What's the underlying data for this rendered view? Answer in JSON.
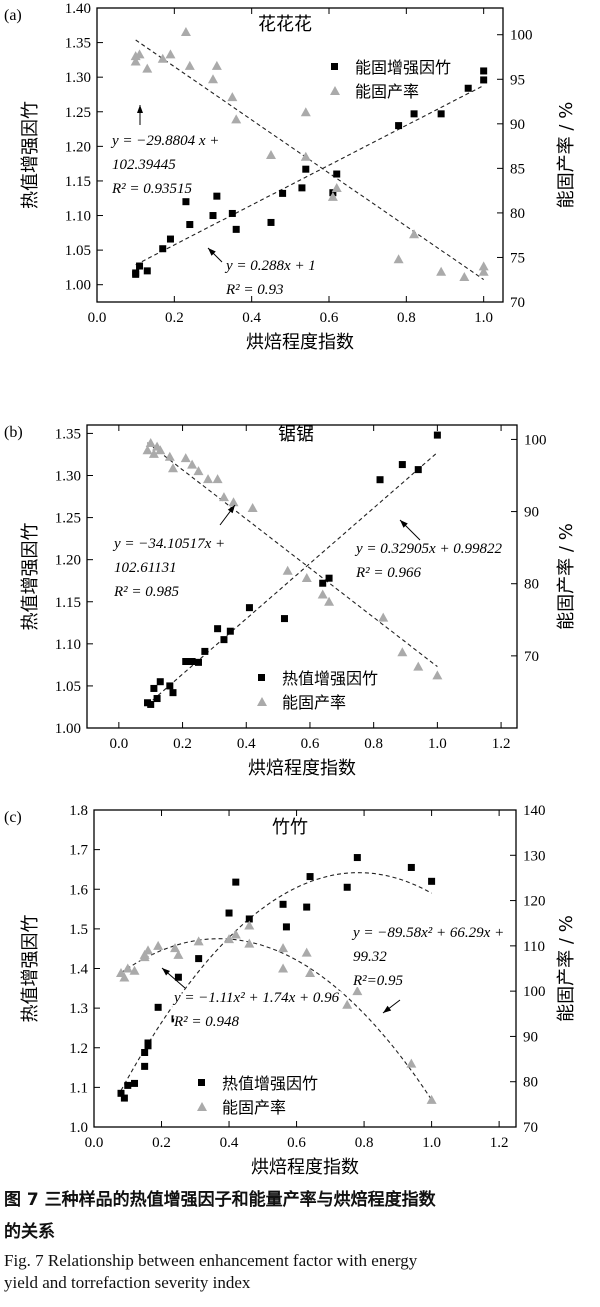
{
  "chart_data": [
    {
      "type": "scatter",
      "panel_label": "(a)",
      "title": "花花花",
      "xlabel": "烘焙程度指数",
      "ylabel_left": "热值增强因竹",
      "ylabel_right": "能固产率 / %",
      "xlim": [
        0.0,
        1.05
      ],
      "ylim_left": [
        0.975,
        1.4
      ],
      "ylim_right": [
        70,
        103
      ],
      "xticks": [
        "0.0",
        "0.2",
        "0.4",
        "0.6",
        "0.8",
        "1.0"
      ],
      "yticks_left": [
        "1.00",
        "1.05",
        "1.10",
        "1.15",
        "1.20",
        "1.25",
        "1.30",
        "1.35",
        "1.40"
      ],
      "yticks_right": [
        "70",
        "75",
        "80",
        "85",
        "90",
        "95",
        "100"
      ],
      "legend_position": "top-right",
      "series": [
        {
          "name": "能固增强因竹",
          "axis": "left",
          "marker": "square",
          "x": [
            0.1,
            0.1,
            0.11,
            0.13,
            0.17,
            0.19,
            0.23,
            0.24,
            0.3,
            0.31,
            0.35,
            0.36,
            0.45,
            0.48,
            0.53,
            0.54,
            0.61,
            0.62,
            0.78,
            0.82,
            0.89,
            0.96,
            1.0,
            1.0
          ],
          "y": [
            1.017,
            1.015,
            1.027,
            1.02,
            1.052,
            1.066,
            1.12,
            1.087,
            1.1,
            1.128,
            1.103,
            1.08,
            1.09,
            1.132,
            1.14,
            1.167,
            1.133,
            1.16,
            1.23,
            1.247,
            1.247,
            1.284,
            1.296,
            1.309
          ]
        },
        {
          "name": "能固产率",
          "axis": "right",
          "marker": "triangle",
          "x": [
            0.1,
            0.1,
            0.11,
            0.13,
            0.17,
            0.19,
            0.23,
            0.24,
            0.3,
            0.31,
            0.35,
            0.36,
            0.45,
            0.54,
            0.54,
            0.61,
            0.62,
            0.78,
            0.82,
            0.89,
            0.95,
            1.0,
            1.0
          ],
          "y": [
            97.6,
            97.0,
            97.8,
            96.2,
            97.3,
            97.8,
            100.3,
            96.5,
            95.0,
            96.5,
            93.0,
            90.5,
            86.5,
            91.3,
            86.3,
            81.8,
            82.8,
            74.8,
            77.6,
            73.4,
            72.8,
            73.4,
            74.0
          ]
        }
      ],
      "fits": [
        {
          "series": "能固增强因竹",
          "label_line1": "y = 0.288x + 1",
          "label_line2": "R² = 0.93",
          "slope": 0.288,
          "intercept": 1.0,
          "x_range": [
            0.1,
            1.0
          ]
        },
        {
          "series": "能固产率",
          "label_line1": "y = −29.8804 x +",
          "label_line2": "102.39445",
          "label_line3": "R² = 0.93515",
          "slope": -29.8804,
          "intercept": 102.39445,
          "x_range": [
            0.1,
            1.0
          ]
        }
      ]
    },
    {
      "type": "scatter",
      "panel_label": "(b)",
      "title": "锯锯",
      "xlabel": "烘焙程度指数",
      "ylabel_left": "热值增强因竹",
      "ylabel_right": "能固产率 / %",
      "xlim": [
        -0.1,
        1.25
      ],
      "ylim_left": [
        1.0,
        1.36
      ],
      "ylim_right": [
        60,
        102
      ],
      "xticks": [
        "0.0",
        "0.2",
        "0.4",
        "0.6",
        "0.8",
        "1.0",
        "1.2"
      ],
      "yticks_left": [
        "1.00",
        "1.05",
        "1.10",
        "1.15",
        "1.20",
        "1.25",
        "1.30",
        "1.35"
      ],
      "yticks_right": [
        "70",
        "80",
        "90",
        "100"
      ],
      "legend_position": "bottom-center",
      "series": [
        {
          "name": "热值增强因竹",
          "axis": "left",
          "marker": "square",
          "x": [
            0.09,
            0.1,
            0.11,
            0.12,
            0.13,
            0.16,
            0.17,
            0.21,
            0.23,
            0.25,
            0.27,
            0.31,
            0.33,
            0.35,
            0.41,
            0.52,
            0.64,
            0.66,
            0.82,
            0.89,
            0.94,
            1.0
          ],
          "y": [
            1.03,
            1.028,
            1.047,
            1.035,
            1.055,
            1.05,
            1.042,
            1.079,
            1.079,
            1.078,
            1.091,
            1.118,
            1.105,
            1.115,
            1.143,
            1.13,
            1.172,
            1.178,
            1.295,
            1.313,
            1.307,
            1.348
          ]
        },
        {
          "name": "能固产率",
          "axis": "right",
          "marker": "triangle",
          "x": [
            0.09,
            0.1,
            0.11,
            0.12,
            0.13,
            0.16,
            0.17,
            0.21,
            0.23,
            0.25,
            0.28,
            0.31,
            0.33,
            0.36,
            0.42,
            0.53,
            0.59,
            0.64,
            0.66,
            0.83,
            0.89,
            0.94,
            1.0
          ],
          "y": [
            98.5,
            99.5,
            98.0,
            99.0,
            98.5,
            97.6,
            96.0,
            97.4,
            96.5,
            95.6,
            94.5,
            94.5,
            92.0,
            91.3,
            90.5,
            81.8,
            80.8,
            78.5,
            77.5,
            75.3,
            70.5,
            68.5,
            67.3
          ]
        }
      ],
      "fits": [
        {
          "series": "热值增强因竹",
          "label_line1": "y = 0.32905x + 0.99822",
          "label_line2": "R² = 0.966",
          "slope": 0.32905,
          "intercept": 0.99822,
          "x_range": [
            0.09,
            1.0
          ]
        },
        {
          "series": "能固产率",
          "label_line1": "y = −34.10517x +",
          "label_line2": "102.61131",
          "label_line3": "R² = 0.985",
          "slope": -34.10517,
          "intercept": 102.61131,
          "x_range": [
            0.09,
            1.0
          ]
        }
      ]
    },
    {
      "type": "scatter",
      "panel_label": "(c)",
      "title": "竹竹",
      "xlabel": "烘焙程度指数",
      "ylabel_left": "热值增强因竹",
      "ylabel_right": "能固产率 / %",
      "xlim": [
        0.0,
        1.25
      ],
      "ylim_left": [
        1.0,
        1.8
      ],
      "ylim_right": [
        70,
        140
      ],
      "xticks": [
        "0.0",
        "0.2",
        "0.4",
        "0.6",
        "0.8",
        "1.0",
        "1.2"
      ],
      "yticks_left": [
        "1.0",
        "1.1",
        "1.2",
        "1.3",
        "1.4",
        "1.5",
        "1.6",
        "1.7",
        "1.8"
      ],
      "yticks_right": [
        "70",
        "80",
        "90",
        "100",
        "110",
        "120",
        "130",
        "140"
      ],
      "legend_position": "bottom-center",
      "series": [
        {
          "name": "热值增强因竹",
          "axis": "left",
          "marker": "square",
          "x": [
            0.08,
            0.09,
            0.1,
            0.12,
            0.15,
            0.15,
            0.16,
            0.16,
            0.19,
            0.24,
            0.25,
            0.31,
            0.4,
            0.42,
            0.46,
            0.56,
            0.57,
            0.63,
            0.64,
            0.75,
            0.78,
            0.94,
            1.0
          ],
          "y": [
            1.085,
            1.073,
            1.105,
            1.11,
            1.153,
            1.188,
            1.205,
            1.212,
            1.302,
            1.273,
            1.378,
            1.425,
            1.54,
            1.618,
            1.525,
            1.562,
            1.505,
            1.555,
            1.632,
            1.605,
            1.68,
            1.655,
            1.62
          ]
        },
        {
          "name": "能固产率",
          "axis": "right",
          "marker": "triangle",
          "x": [
            0.08,
            0.09,
            0.1,
            0.12,
            0.15,
            0.15,
            0.16,
            0.19,
            0.24,
            0.25,
            0.31,
            0.4,
            0.42,
            0.46,
            0.46,
            0.56,
            0.56,
            0.63,
            0.64,
            0.75,
            0.78,
            0.94,
            1.0
          ],
          "y": [
            104.0,
            103.0,
            105.0,
            104.5,
            107.5,
            108.0,
            109.0,
            110.0,
            109.5,
            108.0,
            111.0,
            111.5,
            112.5,
            114.5,
            110.5,
            109.5,
            105.0,
            108.5,
            104.0,
            97.0,
            100.0,
            84.0,
            76.0
          ]
        }
      ],
      "fits": [
        {
          "series": "热值增强因竹",
          "label_line1": "y = −1.11x² + 1.74x + 0.96",
          "label_line2": "R² = 0.948",
          "a": -1.11,
          "b": 1.74,
          "c": 0.96,
          "x_range": [
            0.08,
            1.0
          ]
        },
        {
          "series": "能固产率",
          "label_line1": "y = −89.58x² + 66.29x +",
          "label_line2": "99.32",
          "label_line3": "R²=0.95",
          "a": -89.58,
          "b": 66.29,
          "c": 99.32,
          "x_range": [
            0.08,
            1.0
          ]
        }
      ]
    }
  ],
  "caption": {
    "cn_line1": "图 7   三种样品的热值增强因子和能量产率与烘焙程度指数",
    "cn_line2": "的关系",
    "en_line1": "Fig. 7   Relationship between enhancement factor with energy",
    "en_line2": "yield and torrefaction severity index"
  }
}
